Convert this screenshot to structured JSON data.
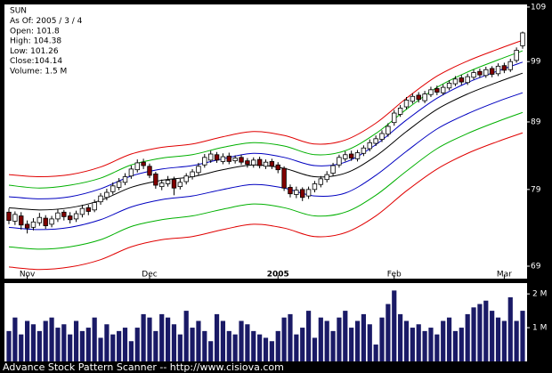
{
  "footer": "Advance Stock Pattern Scanner -- http://www.cisiova.com",
  "chart_data": [
    {
      "type": "candlestick",
      "title": "SUN",
      "annotations": [
        "As Of: 2005 / 3 / 4",
        "Open: 101.8",
        "High: 104.38",
        "Low: 101.26",
        "Close:104.14",
        "Volume: 1.5 M"
      ],
      "categories": [
        null,
        null,
        null,
        "Nov",
        null,
        null,
        null,
        null,
        null,
        null,
        null,
        null,
        null,
        null,
        null,
        null,
        null,
        null,
        null,
        null,
        null,
        null,
        null,
        "Dec",
        null,
        null,
        null,
        null,
        null,
        null,
        null,
        null,
        null,
        null,
        null,
        null,
        null,
        null,
        null,
        null,
        null,
        null,
        null,
        null,
        "2005",
        null,
        null,
        null,
        null,
        null,
        null,
        null,
        null,
        null,
        null,
        null,
        null,
        null,
        null,
        null,
        null,
        null,
        null,
        "Feb",
        null,
        null,
        null,
        null,
        null,
        null,
        null,
        null,
        null,
        null,
        null,
        null,
        null,
        null,
        null,
        null,
        null,
        "Mar",
        null,
        null,
        null
      ],
      "open": [
        75.9,
        74.7,
        75.4,
        74.3,
        73.9,
        74.5,
        75.1,
        74.3,
        75.0,
        75.9,
        75.4,
        75.0,
        75.6,
        76.5,
        76.2,
        77.3,
        77.9,
        78.7,
        79.3,
        80.0,
        80.9,
        81.8,
        82.9,
        82.3,
        81.2,
        79.4,
        79.8,
        80.4,
        79.4,
        80.1,
        80.8,
        81.4,
        82.5,
        83.2,
        84.0,
        83.0,
        83.8,
        83.1,
        83.6,
        83.1,
        82.5,
        83.3,
        82.3,
        83.0,
        82.5,
        82.0,
        79.3,
        78.3,
        79.0,
        78.1,
        79.0,
        79.7,
        80.4,
        81.3,
        82.5,
        83.4,
        84.1,
        83.4,
        84.2,
        84.9,
        85.7,
        86.3,
        87.1,
        88.9,
        90.2,
        91.4,
        92.3,
        93.3,
        92.4,
        93.4,
        94.4,
        93.7,
        94.5,
        95.2,
        96.2,
        95.4,
        96.3,
        97.3,
        96.6,
        97.8,
        96.9,
        98.3,
        97.6,
        99.2,
        101.8
      ],
      "high": [
        76.4,
        76.0,
        75.9,
        74.8,
        75.1,
        75.8,
        75.5,
        75.4,
        76.3,
        76.2,
        75.9,
        76.1,
        76.9,
        76.9,
        77.6,
        78.5,
        79.1,
        80.0,
        80.6,
        81.3,
        82.4,
        83.3,
        83.4,
        82.7,
        81.5,
        80.4,
        80.9,
        80.8,
        80.5,
        81.3,
        81.9,
        82.8,
        84.1,
        84.6,
        84.4,
        84.2,
        84.3,
        83.9,
        84.0,
        83.5,
        83.6,
        83.7,
        83.3,
        83.4,
        82.9,
        82.3,
        79.7,
        79.4,
        79.3,
        79.4,
        80.2,
        80.9,
        81.6,
        82.8,
        84.0,
        84.5,
        84.6,
        84.7,
        85.4,
        86.3,
        86.9,
        87.7,
        88.8,
        90.9,
        91.7,
        93.0,
        93.6,
        93.8,
        94.0,
        94.7,
        94.9,
        95.1,
        95.8,
        96.5,
        96.7,
        96.9,
        97.6,
        97.8,
        98.1,
        98.2,
        98.7,
        98.8,
        99.5,
        101.5,
        104.38
      ],
      "low": [
        74.3,
        74.2,
        73.6,
        73.1,
        73.5,
        74.1,
        73.7,
        73.9,
        74.6,
        74.8,
        74.4,
        74.6,
        75.2,
        75.5,
        75.9,
        76.9,
        77.5,
        78.3,
        78.9,
        79.6,
        80.5,
        81.4,
        81.9,
        80.6,
        79.1,
        78.9,
        79.4,
        78.2,
        79.0,
        79.7,
        80.4,
        81.0,
        82.1,
        82.8,
        82.8,
        82.6,
        82.6,
        82.7,
        82.5,
        82.1,
        82.1,
        82.0,
        81.9,
        81.9,
        81.3,
        78.8,
        77.9,
        77.8,
        77.4,
        77.7,
        78.6,
        79.3,
        80.0,
        80.9,
        82.1,
        83.0,
        83.1,
        83.0,
        83.8,
        84.5,
        85.3,
        85.9,
        86.7,
        88.4,
        89.8,
        91.0,
        91.9,
        92.1,
        92.0,
        93.0,
        93.3,
        93.3,
        94.1,
        94.8,
        95.0,
        95.0,
        95.9,
        96.2,
        96.2,
        96.3,
        96.5,
        97.0,
        97.2,
        98.8,
        101.26
      ],
      "close": [
        74.8,
        75.6,
        74.2,
        73.8,
        74.6,
        75.2,
        74.1,
        75.0,
        75.8,
        75.3,
        74.9,
        75.7,
        76.4,
        76.0,
        77.2,
        78.1,
        78.6,
        79.5,
        80.1,
        80.8,
        81.9,
        82.8,
        82.4,
        81.0,
        79.6,
        79.9,
        80.3,
        79.2,
        80.0,
        80.9,
        81.5,
        82.3,
        83.6,
        84.1,
        83.2,
        83.7,
        83.0,
        83.5,
        82.9,
        82.6,
        83.2,
        82.4,
        82.9,
        82.3,
        81.8,
        79.2,
        78.4,
        78.9,
        77.9,
        79.0,
        79.8,
        80.5,
        81.1,
        82.4,
        83.6,
        84.0,
        83.5,
        84.3,
        85.0,
        85.8,
        86.4,
        87.2,
        88.3,
        90.4,
        91.2,
        92.5,
        93.1,
        92.6,
        93.5,
        94.2,
        93.8,
        94.6,
        95.3,
        96.0,
        95.5,
        96.4,
        97.1,
        96.7,
        97.6,
        96.8,
        98.2,
        97.5,
        99.0,
        101.0,
        104.14
      ],
      "up_color": "#ffffff",
      "down_color": "#800000",
      "ylim": [
        67.5,
        109.5
      ],
      "yticks": [
        69,
        79,
        89,
        99,
        109
      ],
      "log_scale": true,
      "grid": false
    },
    {
      "type": "line",
      "x": [
        0,
        5,
        10,
        15,
        20,
        25,
        30,
        35,
        40,
        45,
        50,
        55,
        60,
        65,
        70,
        75,
        80,
        84
      ],
      "xlim": [
        0,
        84
      ],
      "ylim": [
        67.5,
        109.5
      ],
      "log_scale": true,
      "series": [
        {
          "color": "#e00000",
          "values": [
            81.1,
            80.8,
            81.1,
            82.2,
            84.1,
            85.1,
            85.6,
            86.7,
            87.5,
            86.9,
            85.6,
            86.2,
            88.8,
            92.8,
            96.5,
            99.1,
            101.2,
            102.8
          ]
        },
        {
          "color": "#00b000",
          "values": [
            79.6,
            79.2,
            79.6,
            80.6,
            82.5,
            83.5,
            84.0,
            85.1,
            85.8,
            85.3,
            84.0,
            84.6,
            87.2,
            91.0,
            94.6,
            97.2,
            99.3,
            100.9
          ]
        },
        {
          "color": "#0000c0",
          "values": [
            78.0,
            77.7,
            78.0,
            79.1,
            80.9,
            81.9,
            82.4,
            83.4,
            84.2,
            83.6,
            82.4,
            82.9,
            85.5,
            89.3,
            92.8,
            95.4,
            97.4,
            98.9
          ]
        },
        {
          "color": "#000000",
          "values": [
            76.5,
            76.2,
            76.5,
            77.5,
            79.3,
            80.3,
            80.8,
            81.8,
            82.5,
            82.0,
            80.8,
            81.3,
            83.8,
            87.5,
            91.0,
            93.5,
            95.5,
            97.0
          ]
        },
        {
          "color": "#0000c0",
          "values": [
            73.9,
            73.6,
            73.9,
            74.9,
            76.6,
            77.6,
            78.1,
            79.0,
            79.7,
            79.2,
            78.1,
            78.5,
            81.0,
            84.5,
            87.9,
            90.3,
            92.3,
            93.7
          ]
        },
        {
          "color": "#00b000",
          "values": [
            71.4,
            71.1,
            71.4,
            72.3,
            74.0,
            74.9,
            75.4,
            76.3,
            77.0,
            76.5,
            75.4,
            75.9,
            78.2,
            81.6,
            84.9,
            87.2,
            89.1,
            90.5
          ]
        },
        {
          "color": "#e00000",
          "values": [
            68.9,
            68.6,
            68.9,
            69.8,
            71.4,
            72.3,
            72.7,
            73.6,
            74.3,
            73.8,
            72.7,
            73.2,
            75.4,
            78.8,
            81.9,
            84.2,
            86.0,
            87.3
          ]
        }
      ]
    },
    {
      "type": "bar",
      "color": "#1a1a66",
      "values": [
        0.9,
        1.3,
        0.8,
        1.2,
        1.1,
        0.9,
        1.2,
        1.3,
        1.0,
        1.1,
        0.8,
        1.2,
        0.9,
        1.0,
        1.3,
        0.7,
        1.1,
        0.8,
        0.9,
        1.0,
        0.6,
        1.0,
        1.4,
        1.3,
        0.9,
        1.4,
        1.3,
        1.1,
        0.8,
        1.5,
        1.0,
        1.2,
        0.9,
        0.6,
        1.4,
        1.2,
        0.9,
        0.8,
        1.2,
        1.1,
        0.9,
        0.8,
        0.7,
        0.6,
        0.9,
        1.3,
        1.4,
        0.8,
        1.0,
        1.5,
        0.7,
        1.3,
        1.2,
        0.9,
        1.3,
        1.5,
        1.0,
        1.2,
        1.4,
        1.1,
        0.5,
        1.3,
        1.7,
        2.1,
        1.4,
        1.2,
        1.0,
        1.1,
        0.9,
        1.0,
        0.8,
        1.2,
        1.3,
        0.9,
        1.0,
        1.4,
        1.6,
        1.7,
        1.8,
        1.5,
        1.3,
        1.2,
        1.9,
        1.2,
        1.5
      ],
      "ylim": [
        0,
        2.32
      ],
      "yticks": [
        {
          "value": 1,
          "label": "1 M"
        },
        {
          "value": 2,
          "label": "2 M"
        }
      ]
    }
  ]
}
